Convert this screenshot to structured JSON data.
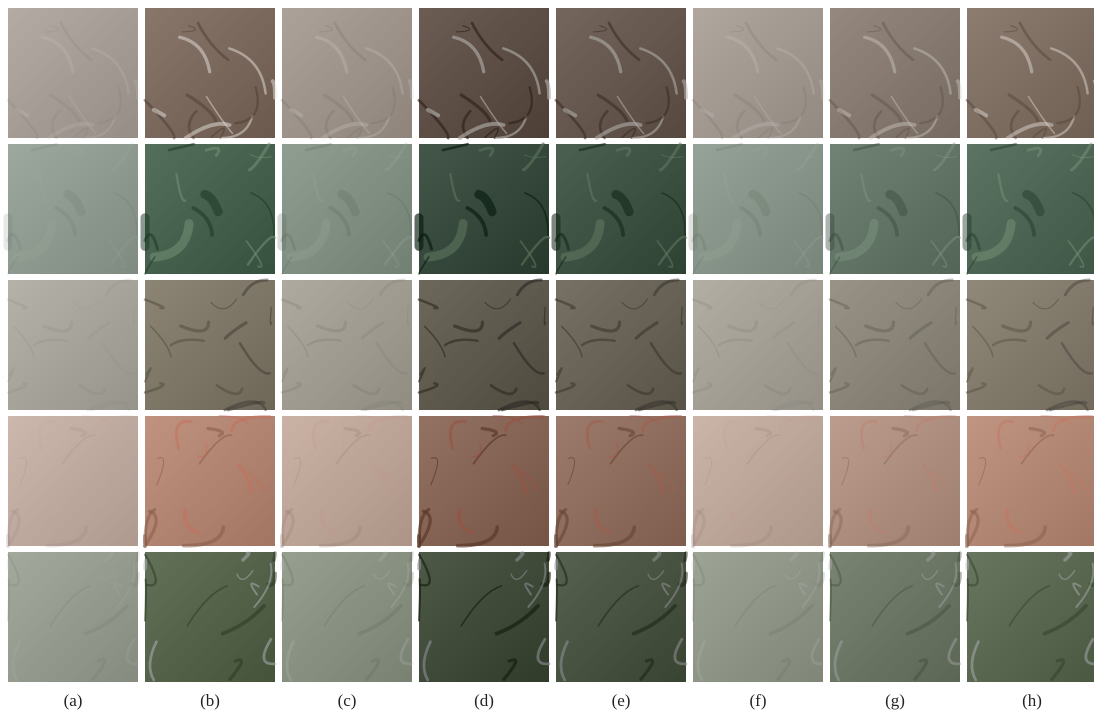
{
  "figure": {
    "labels": [
      "(a)",
      "(b)",
      "(c)",
      "(d)",
      "(e)",
      "(f)",
      "(g)",
      "(h)"
    ]
  }
}
